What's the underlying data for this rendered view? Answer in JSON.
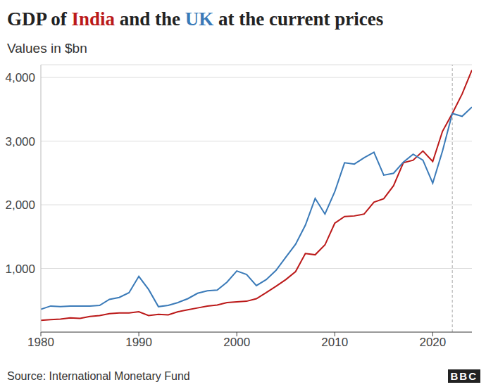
{
  "chart_data": {
    "type": "line",
    "title": "GDP of India and the UK at the current prices",
    "subtitle": "Values in $bn",
    "source": "Source: International Monetary Fund",
    "logo": "BBC",
    "x": [
      1980,
      1981,
      1982,
      1983,
      1984,
      1985,
      1986,
      1987,
      1988,
      1989,
      1990,
      1991,
      1992,
      1993,
      1994,
      1995,
      1996,
      1997,
      1998,
      1999,
      2000,
      2001,
      2002,
      2003,
      2004,
      2005,
      2006,
      2007,
      2008,
      2009,
      2010,
      2011,
      2012,
      2013,
      2014,
      2015,
      2016,
      2017,
      2018,
      2019,
      2020,
      2021,
      2022,
      2023,
      2024
    ],
    "series": [
      {
        "name": "India",
        "color": "#bb1919",
        "values": [
          185,
          195,
          205,
          225,
          215,
          245,
          260,
          290,
          300,
          300,
          320,
          260,
          280,
          270,
          320,
          350,
          380,
          410,
          425,
          465,
          475,
          485,
          525,
          620,
          720,
          825,
          950,
          1235,
          1215,
          1370,
          1710,
          1815,
          1825,
          1855,
          2040,
          2095,
          2300,
          2660,
          2700,
          2845,
          2680,
          3155,
          3435,
          3740,
          4115
        ]
      },
      {
        "name": "UK",
        "color": "#3a7ab8",
        "values": [
          360,
          410,
          400,
          410,
          410,
          410,
          420,
          515,
          545,
          620,
          875,
          670,
          400,
          420,
          465,
          525,
          610,
          650,
          660,
          785,
          960,
          905,
          730,
          825,
          970,
          1175,
          1380,
          1680,
          2100,
          1855,
          2205,
          2660,
          2640,
          2740,
          2825,
          2465,
          2495,
          2670,
          2795,
          2700,
          2340,
          2845,
          3435,
          3390,
          3535
        ]
      }
    ],
    "xlim": [
      1980,
      2024
    ],
    "xticks": [
      1980,
      1990,
      2000,
      2010,
      2020
    ],
    "ylim": [
      0,
      4200
    ],
    "yticks": [
      {
        "value": 1000,
        "label": "1,000"
      },
      {
        "value": 2000,
        "label": "2,000"
      },
      {
        "value": 3000,
        "label": "3,000"
      },
      {
        "value": 4000,
        "label": "4,000"
      }
    ],
    "grid": true,
    "divider_x": 2022
  }
}
